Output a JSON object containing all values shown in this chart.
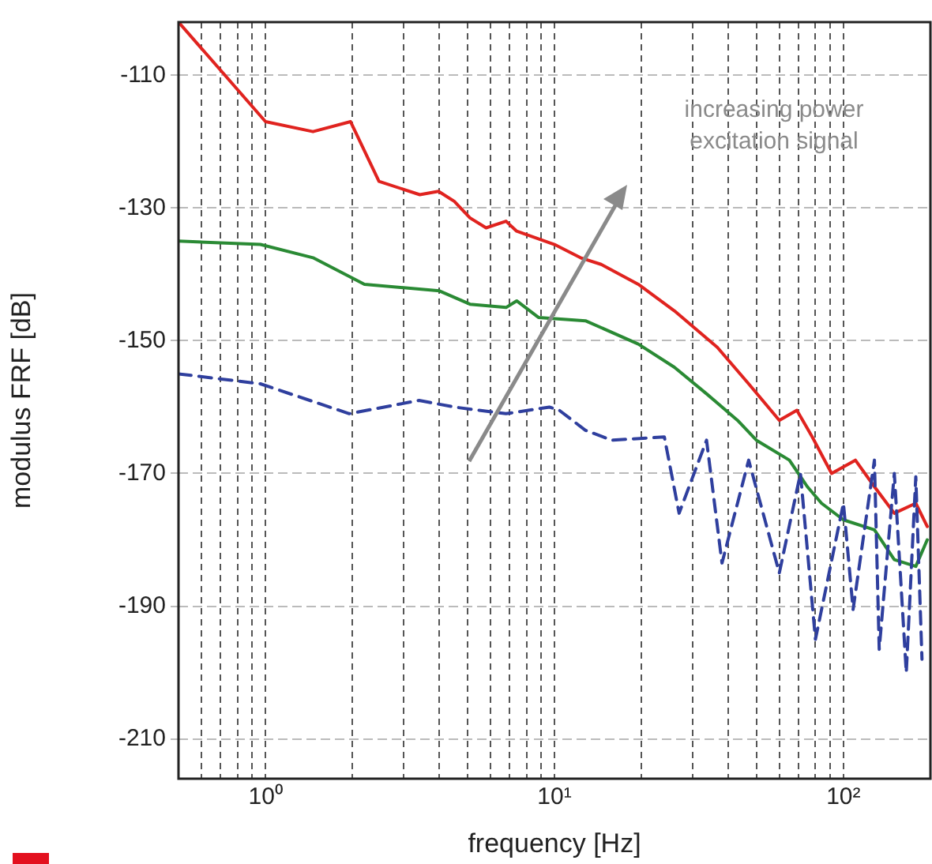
{
  "chart_data": {
    "type": "line",
    "xlabel": "frequency [Hz]",
    "ylabel": "modulus FRF [dB]",
    "log": "x",
    "grid": true,
    "legend": false,
    "marker": "none",
    "xlim": [
      0.5,
      200
    ],
    "ylim": [
      -216,
      -102
    ],
    "xticks": [
      {
        "value": 0.5,
        "label": null
      },
      {
        "value": 0.6,
        "label": null
      },
      {
        "value": 0.7,
        "label": null
      },
      {
        "value": 0.8,
        "label": null
      },
      {
        "value": 0.9,
        "label": null
      },
      {
        "value": 1,
        "label": "10⁰"
      },
      {
        "value": 2,
        "label": null
      },
      {
        "value": 3,
        "label": null
      },
      {
        "value": 4,
        "label": null
      },
      {
        "value": 5,
        "label": null
      },
      {
        "value": 6,
        "label": null
      },
      {
        "value": 7,
        "label": null
      },
      {
        "value": 8,
        "label": null
      },
      {
        "value": 9,
        "label": null
      },
      {
        "value": 10,
        "label": "10¹"
      },
      {
        "value": 20,
        "label": null
      },
      {
        "value": 30,
        "label": null
      },
      {
        "value": 40,
        "label": null
      },
      {
        "value": 50,
        "label": null
      },
      {
        "value": 60,
        "label": null
      },
      {
        "value": 70,
        "label": null
      },
      {
        "value": 80,
        "label": null
      },
      {
        "value": 90,
        "label": null
      },
      {
        "value": 100,
        "label": "10²"
      }
    ],
    "yticks": [
      -210,
      -190,
      -170,
      -150,
      -130,
      -110
    ],
    "annotations": [
      "increasing power excitation signal"
    ],
    "series": [
      {
        "color": "#e0231f",
        "line_style": "solid",
        "x": [
          0.5,
          1,
          1.46,
          1.97,
          2.47,
          3.42,
          3.97,
          4.5,
          5.1,
          5.8,
          6.8,
          7.4,
          10,
          12.3,
          14.5,
          19.5,
          26,
          36.6,
          47,
          60,
          69,
          78,
          91,
          110,
          128,
          150,
          178,
          195
        ],
        "values": [
          -102,
          -117,
          -118.5,
          -117,
          -126,
          -128,
          -127.5,
          -129,
          -131.5,
          -133,
          -132,
          -133.5,
          -135.5,
          -137.5,
          -138.5,
          -141.5,
          -145.5,
          -151,
          -156.5,
          -162,
          -160.5,
          -164.5,
          -170,
          -168,
          -172,
          -176,
          -174.5,
          -178
        ]
      },
      {
        "color": "#2a8a34",
        "line_style": "solid",
        "x": [
          0.5,
          0.96,
          1.46,
          2.2,
          4,
          5.1,
          6.8,
          7.4,
          8.8,
          12.8,
          19.5,
          26,
          33.6,
          43,
          50,
          65,
          75,
          84,
          100,
          128,
          150,
          178,
          195
        ],
        "values": [
          -135,
          -135.5,
          -137.5,
          -141.5,
          -142.5,
          -144.5,
          -145,
          -144,
          -146.5,
          -147,
          -150.5,
          -154,
          -158,
          -162,
          -165,
          -168,
          -172,
          -174.5,
          -177,
          -178.5,
          -183,
          -184,
          -180
        ]
      },
      {
        "color": "#2f3f9e",
        "line_style": "dashed",
        "x": [
          0.5,
          0.96,
          1.95,
          3.4,
          4.5,
          6.8,
          9.6,
          10.4,
          12.8,
          15.8,
          24,
          27,
          33.6,
          38,
          47,
          60,
          71,
          80,
          100,
          108,
          128,
          133,
          150,
          165,
          178,
          187
        ],
        "values": [
          -155,
          -156.5,
          -161,
          -159,
          -160,
          -161,
          -160,
          -160.5,
          -163.5,
          -165,
          -164.5,
          -176,
          -165,
          -183.5,
          -168,
          -185,
          -170,
          -195,
          -174.5,
          -190.5,
          -168,
          -196.5,
          -170,
          -200,
          -170.5,
          -198
        ]
      }
    ]
  }
}
